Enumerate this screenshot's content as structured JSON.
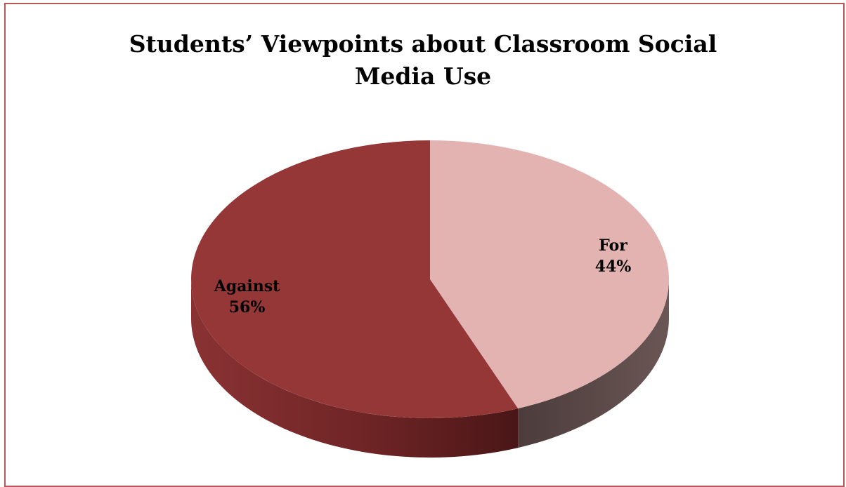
{
  "chart_data": {
    "type": "pie",
    "title_lines": [
      "Students’ Viewpoints about Classroom Social",
      "Media Use"
    ],
    "slices": [
      {
        "name": "For",
        "value": 44,
        "label": "44%",
        "color": "#e2b3b1",
        "side_color": "#5c4a4a"
      },
      {
        "name": "Against",
        "value": 56,
        "label": "56%",
        "color": "#953637",
        "side_color": "#6b2223"
      }
    ],
    "legend": "none",
    "style": "3d"
  }
}
